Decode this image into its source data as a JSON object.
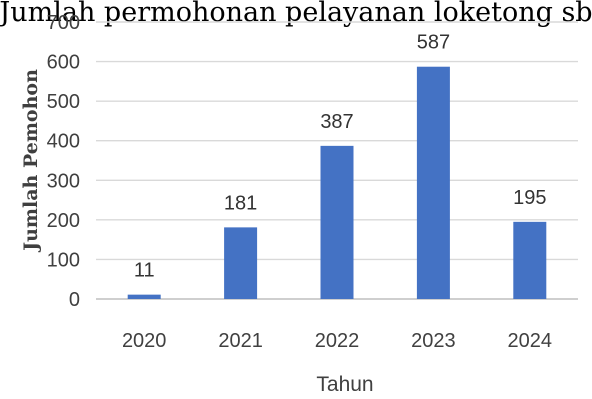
{
  "chart_data": {
    "type": "bar",
    "title": "Jumlah permohonan pelayanan loketong sb",
    "xlabel": "Tahun",
    "ylabel": "Jumlah Pemohon",
    "categories": [
      "2020",
      "2021",
      "2022",
      "2023",
      "2024"
    ],
    "values": [
      11,
      181,
      387,
      587,
      195
    ],
    "data_labels": [
      "11",
      "181",
      "387",
      "587",
      "195"
    ],
    "ylim": [
      0,
      700
    ],
    "yticks": [
      0,
      100,
      200,
      300,
      400,
      500,
      600,
      700
    ],
    "grid": true,
    "legend": "none",
    "bar_color": "#4472c4"
  }
}
